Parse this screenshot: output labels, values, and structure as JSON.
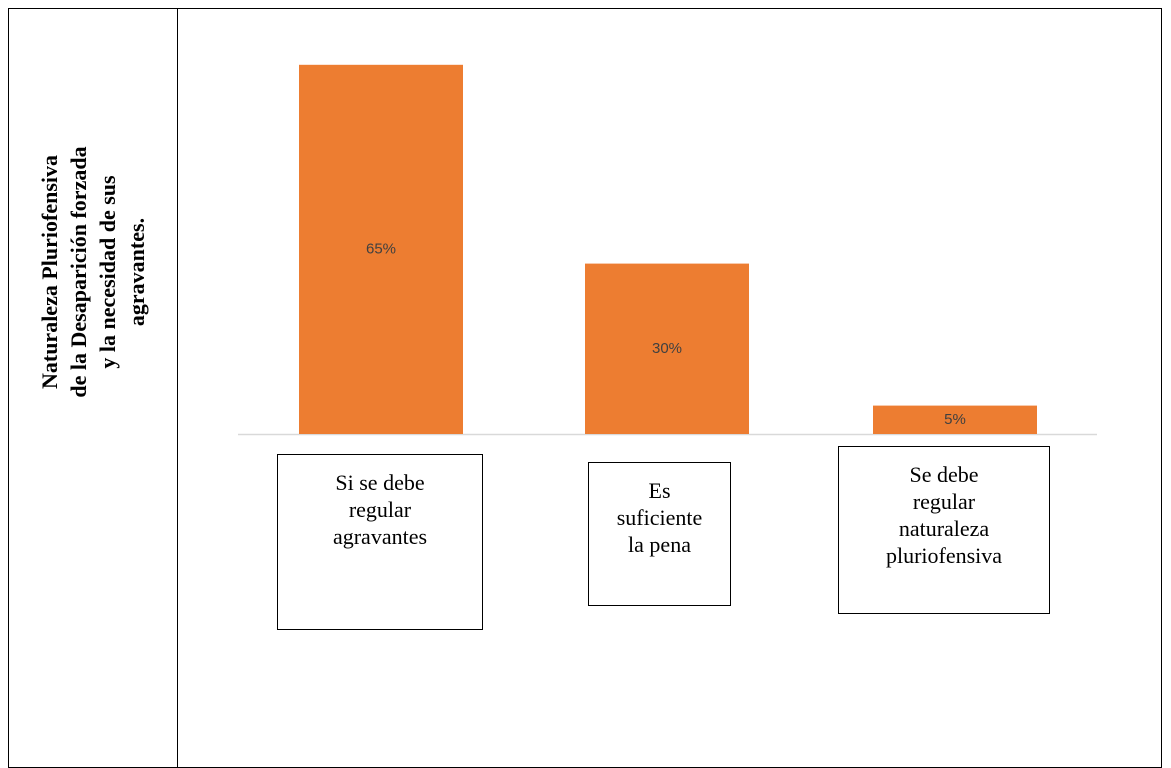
{
  "chart_data": {
    "type": "bar",
    "title": "Naturaleza Pluriofensiva\nde la Desaparición forzada\ny la necesidad de sus\nagravantes.",
    "categories": [
      "Si se debe\nregular\nagravantes",
      "Es\nsuficiente\nla pena",
      "Se debe\nregular\nnaturaleza\npluriofensiva"
    ],
    "values": [
      65,
      30,
      5
    ],
    "value_labels": [
      "65%",
      "30%",
      "5%"
    ],
    "color": "#ed7d31"
  }
}
